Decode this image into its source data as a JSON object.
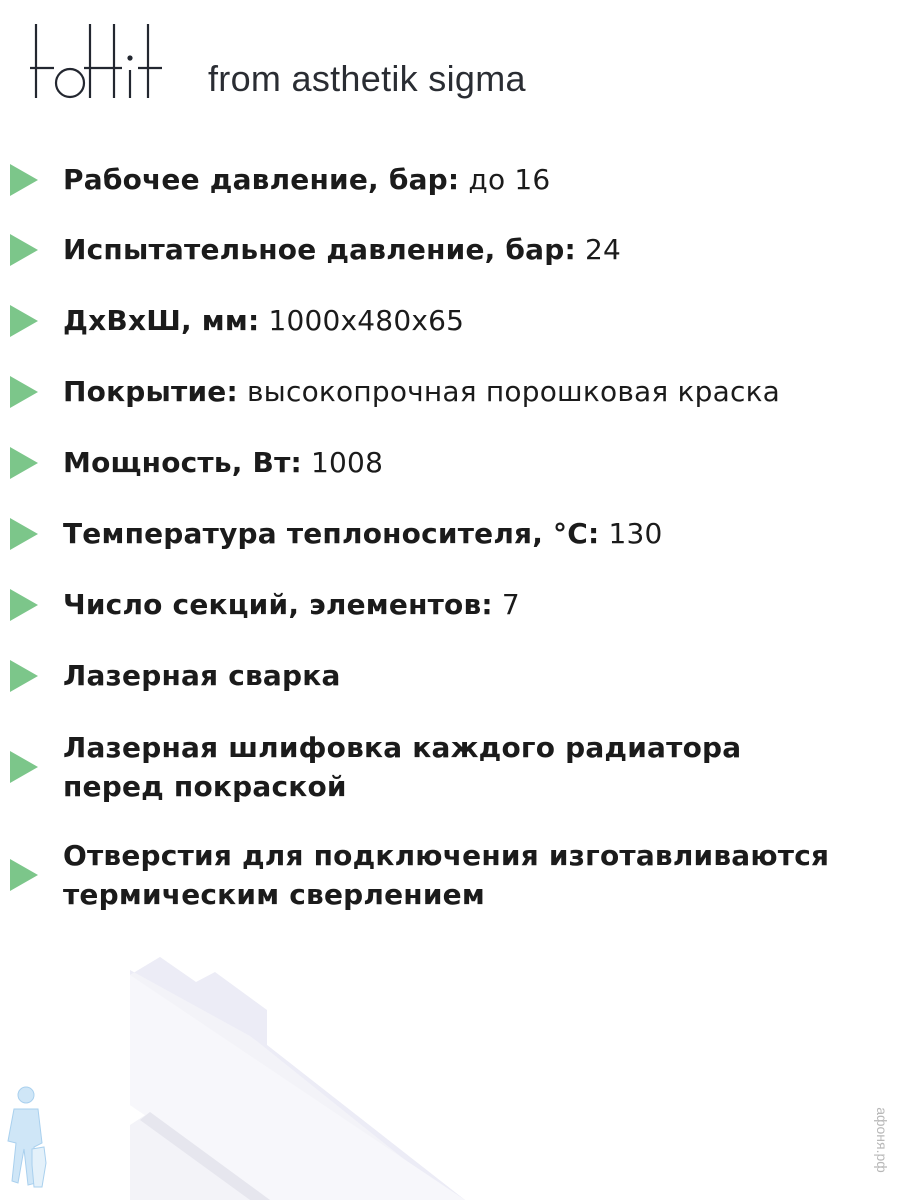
{
  "header": {
    "logo": "tottit",
    "tagline": "from asthetik sigma"
  },
  "colors": {
    "bullet": "#7cc68a",
    "text": "#1b1b1b"
  },
  "specs": [
    {
      "label": "Рабочее давление, бар:",
      "value": " до 16"
    },
    {
      "label": "Испытательное давление, бар:",
      "value": " 24"
    },
    {
      "label": "ДхВхШ, мм:",
      "value": " 1000x480x65"
    },
    {
      "label": "Покрытие:",
      "value": " высокопрочная порошковая краска"
    },
    {
      "label": "Мощность, Вт:",
      "value": " 1008"
    },
    {
      "label": "Температура теплоносителя, °C:",
      "value": " 130"
    },
    {
      "label": "Число секций, элементов:",
      "value": " 7"
    },
    {
      "label": "Лазерная сварка",
      "value": ""
    },
    {
      "label": "Лазерная шлифовка каждого радиатора",
      "label2": "перед покраской",
      "value": ""
    },
    {
      "label": "Отверстия для подключения изготавливаются",
      "label2": "термическим сверлением",
      "value": ""
    }
  ],
  "watermark": "афоня.рф"
}
